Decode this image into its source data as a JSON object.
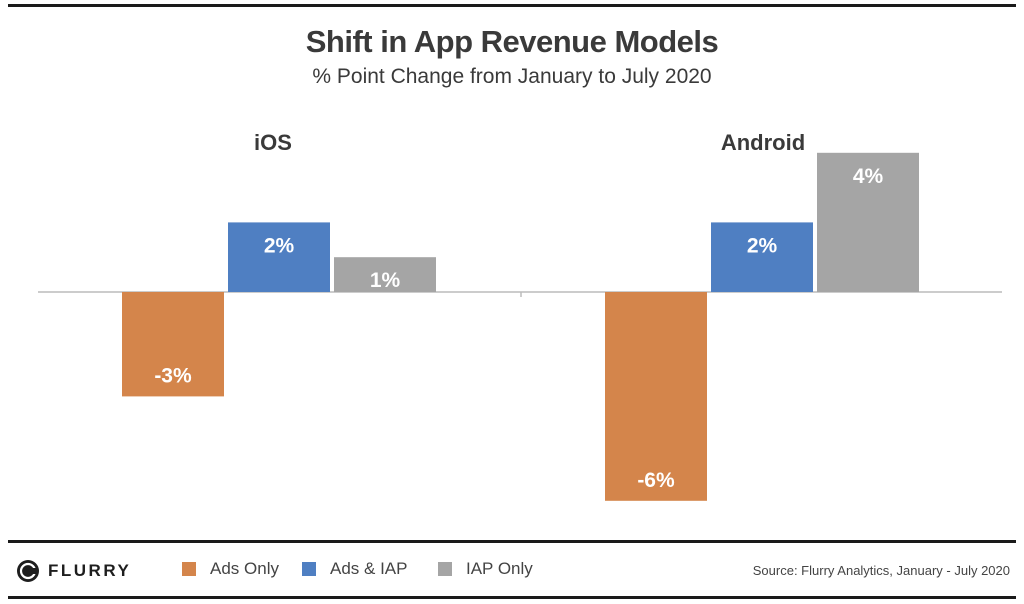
{
  "colors": {
    "ads_only": "#D4854B",
    "ads_iap": "#4F7FC2",
    "iap_only": "#A5A5A5",
    "axis": "#bcbcbc",
    "label_text": "#ffffff",
    "group_text": "#3a3a3a"
  },
  "footer": {
    "brand": "FLURRY",
    "source": "Source: Flurry Analytics, January - July 2020"
  },
  "chart_data": {
    "type": "bar",
    "title": "Shift in App Revenue Models",
    "subtitle": "% Point Change from January to July 2020",
    "categories": [
      "iOS",
      "Android"
    ],
    "series": [
      {
        "name": "Ads Only",
        "values": [
          -3,
          -6
        ],
        "labels": [
          "-3%",
          "-6%"
        ]
      },
      {
        "name": "Ads & IAP",
        "values": [
          2,
          2
        ],
        "labels": [
          "2%",
          "2%"
        ]
      },
      {
        "name": "IAP Only",
        "values": [
          1,
          4
        ],
        "labels": [
          "1%",
          "4%"
        ]
      }
    ],
    "ylim": [
      -6,
      4
    ],
    "grid": false,
    "legend": "bottom"
  }
}
